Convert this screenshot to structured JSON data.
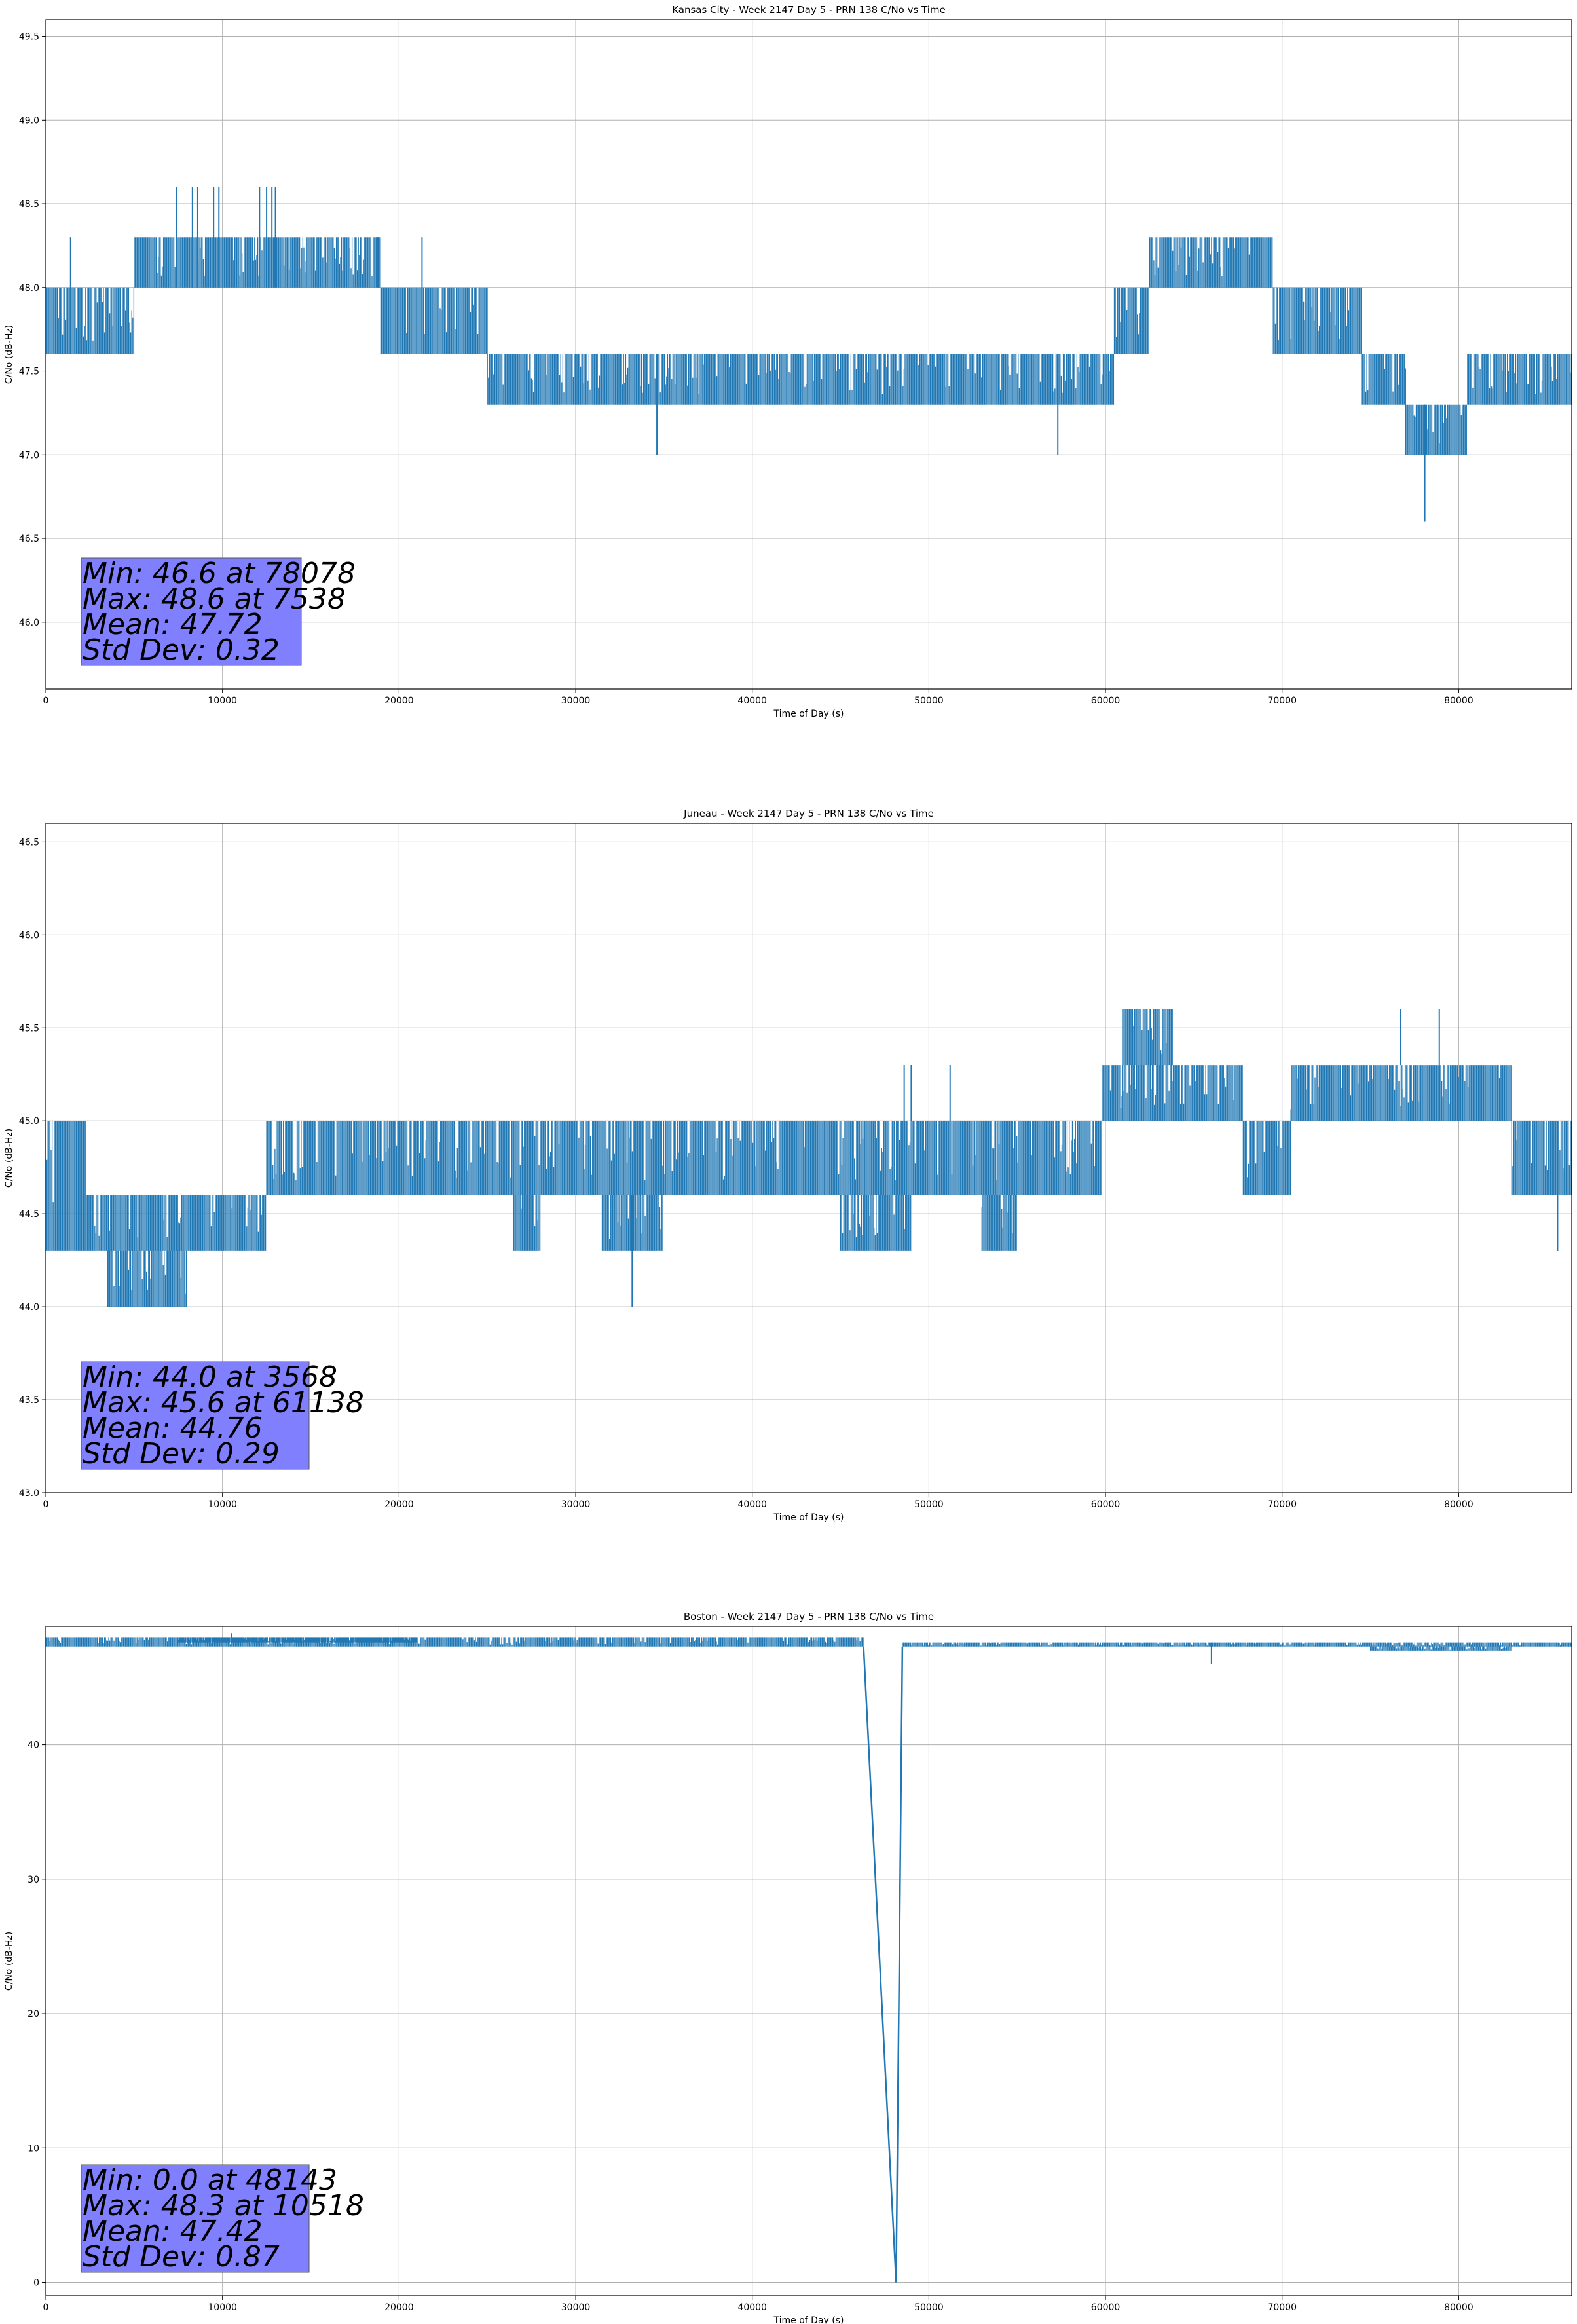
{
  "colors": {
    "series": "#1f77b4",
    "statbox": "#8080ff",
    "grid": "#b0b0b0"
  },
  "chart_data": [
    {
      "type": "line",
      "title": "Kansas City - Week 2147 Day 5 - PRN 138 C/No vs Time",
      "xlabel": "Time of Day (s)",
      "ylabel": "C/No (dB-Hz)",
      "xlim": [
        0,
        86400
      ],
      "ylim": [
        45.6,
        49.6
      ],
      "xticks": [
        0,
        10000,
        20000,
        30000,
        40000,
        50000,
        60000,
        70000,
        80000
      ],
      "yticks": [
        46.0,
        46.5,
        47.0,
        47.5,
        48.0,
        48.5,
        49.0,
        49.5
      ],
      "ytick_labels": [
        "46.0",
        "46.5",
        "47.0",
        "47.5",
        "48.0",
        "48.5",
        "49.0",
        "49.5"
      ],
      "grid": true,
      "stats_box": [
        "Min: 46.6 at 78078",
        "Max: 48.6 at 7538",
        "Mean: 47.72",
        "Std Dev: 0.32"
      ],
      "series": [
        {
          "segments": [
            {
              "x0": 0,
              "x1": 5000,
              "lo": 47.6,
              "hi": 48.0
            },
            {
              "x0": 5000,
              "x1": 19000,
              "lo": 48.0,
              "hi": 48.3
            },
            {
              "x0": 19000,
              "x1": 25000,
              "lo": 47.6,
              "hi": 48.0
            },
            {
              "x0": 25000,
              "x1": 48000,
              "lo": 47.3,
              "hi": 47.6
            },
            {
              "x0": 48000,
              "x1": 60500,
              "lo": 47.3,
              "hi": 47.6
            },
            {
              "x0": 60500,
              "x1": 62500,
              "lo": 47.6,
              "hi": 48.0
            },
            {
              "x0": 62500,
              "x1": 69500,
              "lo": 48.0,
              "hi": 48.3
            },
            {
              "x0": 69500,
              "x1": 74500,
              "lo": 47.6,
              "hi": 48.0
            },
            {
              "x0": 74500,
              "x1": 77000,
              "lo": 47.3,
              "hi": 47.6
            },
            {
              "x0": 77000,
              "x1": 80500,
              "lo": 47.0,
              "hi": 47.3
            },
            {
              "x0": 80500,
              "x1": 86400,
              "lo": 47.3,
              "hi": 47.6
            }
          ],
          "spikes": [
            {
              "x": 1400,
              "lo": 47.6,
              "hi": 48.3
            },
            {
              "x": 7400,
              "lo": 48.0,
              "hi": 48.6
            },
            {
              "x": 8300,
              "lo": 48.0,
              "hi": 48.6
            },
            {
              "x": 8600,
              "lo": 48.0,
              "hi": 48.6
            },
            {
              "x": 9500,
              "lo": 48.0,
              "hi": 48.6
            },
            {
              "x": 9800,
              "lo": 48.0,
              "hi": 48.6
            },
            {
              "x": 12100,
              "lo": 48.0,
              "hi": 48.6
            },
            {
              "x": 12500,
              "lo": 48.0,
              "hi": 48.6
            },
            {
              "x": 12800,
              "lo": 48.0,
              "hi": 48.6
            },
            {
              "x": 13000,
              "lo": 48.0,
              "hi": 48.6
            },
            {
              "x": 18800,
              "lo": 48.0,
              "hi": 48.3
            },
            {
              "x": 21300,
              "lo": 48.0,
              "hi": 48.3
            },
            {
              "x": 34600,
              "lo": 47.0,
              "hi": 47.6
            },
            {
              "x": 57300,
              "lo": 47.0,
              "hi": 47.6
            },
            {
              "x": 78078,
              "lo": 46.6,
              "hi": 47.3
            }
          ]
        }
      ]
    },
    {
      "type": "line",
      "title": "Juneau - Week 2147 Day 5 - PRN 138 C/No vs Time",
      "xlabel": "Time of Day (s)",
      "ylabel": "C/No (dB-Hz)",
      "xlim": [
        0,
        86400
      ],
      "ylim": [
        43.0,
        46.6
      ],
      "xticks": [
        0,
        10000,
        20000,
        30000,
        40000,
        50000,
        60000,
        70000,
        80000
      ],
      "yticks": [
        43.0,
        43.5,
        44.0,
        44.5,
        45.0,
        45.5,
        46.0,
        46.5
      ],
      "ytick_labels": [
        "43.0",
        "43.5",
        "44.0",
        "44.5",
        "45.0",
        "45.5",
        "46.0",
        "46.5"
      ],
      "grid": true,
      "stats_box": [
        "Min: 44.0 at 3568",
        "Max: 45.6 at 61138",
        "Mean: 44.76",
        "Std Dev: 0.29"
      ],
      "series": [
        {
          "segments": [
            {
              "x0": 0,
              "x1": 2300,
              "lo": 44.3,
              "hi": 45.0
            },
            {
              "x0": 2300,
              "x1": 12500,
              "lo": 44.3,
              "hi": 44.6
            },
            {
              "x0": 3500,
              "x1": 8000,
              "lo": 44.0,
              "hi": 44.3
            },
            {
              "x0": 12500,
              "x1": 59800,
              "lo": 44.6,
              "hi": 45.0
            },
            {
              "x0": 26500,
              "x1": 28000,
              "lo": 44.3,
              "hi": 44.6
            },
            {
              "x0": 31500,
              "x1": 35000,
              "lo": 44.3,
              "hi": 44.6
            },
            {
              "x0": 45000,
              "x1": 49000,
              "lo": 44.3,
              "hi": 44.6
            },
            {
              "x0": 53000,
              "x1": 55000,
              "lo": 44.3,
              "hi": 44.6
            },
            {
              "x0": 59800,
              "x1": 67800,
              "lo": 45.0,
              "hi": 45.3
            },
            {
              "x0": 61000,
              "x1": 63800,
              "lo": 45.3,
              "hi": 45.6
            },
            {
              "x0": 67800,
              "x1": 70500,
              "lo": 44.6,
              "hi": 45.0
            },
            {
              "x0": 70500,
              "x1": 83000,
              "lo": 45.0,
              "hi": 45.3
            },
            {
              "x0": 83000,
              "x1": 86400,
              "lo": 44.6,
              "hi": 45.0
            }
          ],
          "spikes": [
            {
              "x": 3568,
              "lo": 44.0,
              "hi": 44.3
            },
            {
              "x": 33200,
              "lo": 44.0,
              "hi": 44.6
            },
            {
              "x": 48600,
              "lo": 45.0,
              "hi": 45.3
            },
            {
              "x": 49000,
              "lo": 45.0,
              "hi": 45.3
            },
            {
              "x": 51200,
              "lo": 45.0,
              "hi": 45.3
            },
            {
              "x": 76700,
              "lo": 45.3,
              "hi": 45.6
            },
            {
              "x": 78900,
              "lo": 45.3,
              "hi": 45.6
            },
            {
              "x": 85600,
              "lo": 44.3,
              "hi": 45.0
            }
          ]
        }
      ]
    },
    {
      "type": "line",
      "title": "Boston - Week 2147 Day 5 - PRN 138 C/No vs Time",
      "xlabel": "Time of Day (s)",
      "ylabel": "C/No (dB-Hz)",
      "xlim": [
        0,
        86400
      ],
      "ylim": [
        -1,
        48.8
      ],
      "xticks": [
        0,
        10000,
        20000,
        30000,
        40000,
        50000,
        60000,
        70000,
        80000
      ],
      "yticks": [
        0,
        10,
        20,
        30,
        40
      ],
      "ytick_labels": [
        "0",
        "10",
        "20",
        "30",
        "40"
      ],
      "grid": true,
      "stats_box": [
        "Min: 0.0 at 48143",
        "Max: 48.3 at 10518",
        "Mean: 47.42",
        "Std Dev: 0.87"
      ],
      "series": [
        {
          "segments": [
            {
              "x0": 0,
              "x1": 46300,
              "lo": 47.3,
              "hi": 48.0
            },
            {
              "x0": 7500,
              "x1": 21000,
              "lo": 47.6,
              "hi": 48.0
            },
            {
              "x0": 48500,
              "x1": 86400,
              "lo": 47.3,
              "hi": 47.6
            },
            {
              "x0": 75000,
              "x1": 83000,
              "lo": 47.0,
              "hi": 47.3
            }
          ],
          "spikes": [
            {
              "x": 10518,
              "lo": 47.6,
              "hi": 48.3
            },
            {
              "x": 66000,
              "lo": 46.0,
              "hi": 47.6
            }
          ],
          "dropout": [
            [
              46300,
              47.3
            ],
            [
              48143,
              0.0
            ],
            [
              48500,
              47.3
            ]
          ]
        }
      ]
    }
  ]
}
